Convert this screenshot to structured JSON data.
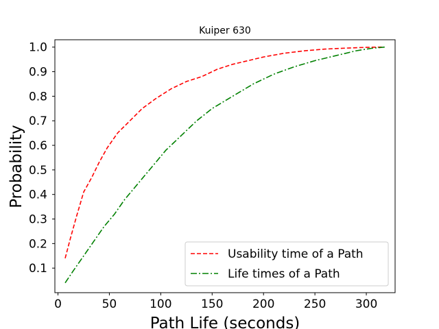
{
  "chart_data": {
    "type": "line",
    "title": "Kuiper 630",
    "xlabel": "Path Life (seconds)",
    "ylabel": "Probability",
    "xlim": [
      -3,
      328
    ],
    "ylim": [
      0.0,
      1.03
    ],
    "xticks": [
      0,
      50,
      100,
      150,
      200,
      250,
      300
    ],
    "yticks": [
      0.1,
      0.2,
      0.3,
      0.4,
      0.5,
      0.6,
      0.7,
      0.8,
      0.9,
      1.0
    ],
    "grid": false,
    "legend_position": "lower-right",
    "series": [
      {
        "name": "Usability time of a Path",
        "color": "#ff0000",
        "linestyle": "dashed",
        "x": [
          7,
          12,
          18,
          25,
          33,
          40,
          48,
          58,
          70,
          82,
          95,
          110,
          125,
          140,
          155,
          170,
          185,
          200,
          220,
          240,
          260,
          280,
          300,
          315
        ],
        "y": [
          0.14,
          0.22,
          0.31,
          0.41,
          0.47,
          0.53,
          0.59,
          0.65,
          0.7,
          0.75,
          0.79,
          0.83,
          0.86,
          0.88,
          0.91,
          0.93,
          0.945,
          0.96,
          0.975,
          0.985,
          0.992,
          0.996,
          0.999,
          1.0
        ]
      },
      {
        "name": "Life times of a Path",
        "color": "#008000",
        "linestyle": "dashdot",
        "x": [
          7,
          15,
          25,
          35,
          45,
          55,
          65,
          75,
          85,
          95,
          105,
          120,
          135,
          150,
          170,
          190,
          210,
          230,
          250,
          270,
          290,
          305,
          318
        ],
        "y": [
          0.04,
          0.09,
          0.15,
          0.21,
          0.27,
          0.32,
          0.38,
          0.43,
          0.48,
          0.53,
          0.58,
          0.64,
          0.7,
          0.75,
          0.8,
          0.85,
          0.89,
          0.92,
          0.945,
          0.965,
          0.985,
          0.995,
          1.0
        ]
      }
    ]
  }
}
